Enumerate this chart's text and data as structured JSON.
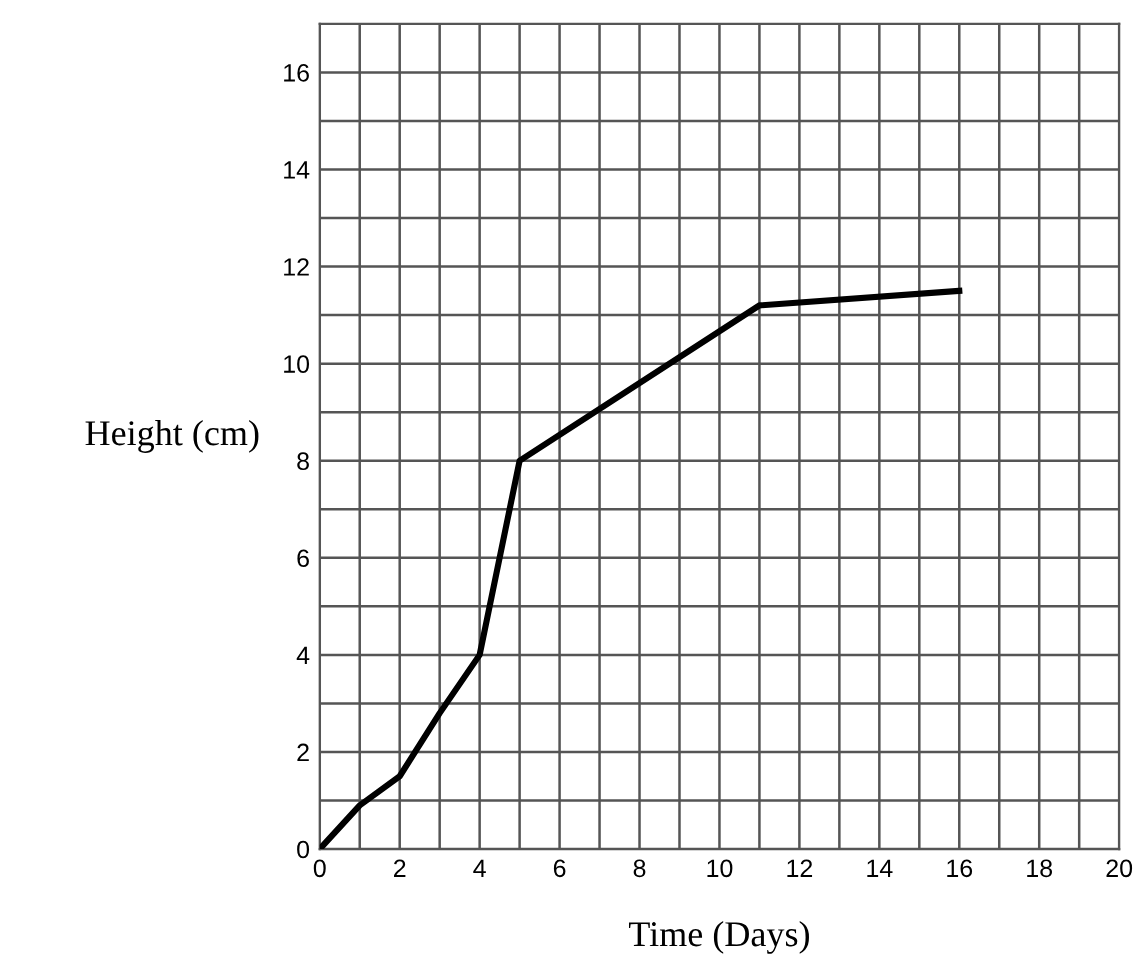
{
  "chart_data": {
    "type": "line",
    "xlabel": "Time (Days)",
    "ylabel": "Height (cm)",
    "x": [
      0,
      1,
      2,
      3,
      4,
      5,
      11,
      16
    ],
    "series": [
      {
        "color": "#000000",
        "values": [
          0,
          0.9,
          1.5,
          2.8,
          4,
          8,
          11.2,
          11.5
        ]
      }
    ],
    "xlim": [
      0,
      20
    ],
    "ylim": [
      0,
      17
    ],
    "xticks": [
      0,
      2,
      4,
      6,
      8,
      10,
      12,
      14,
      16,
      18,
      20
    ],
    "yticks": [
      0,
      2,
      4,
      6,
      8,
      10,
      12,
      14,
      16
    ],
    "grid": true,
    "marker": "none",
    "line_style": "solid"
  }
}
